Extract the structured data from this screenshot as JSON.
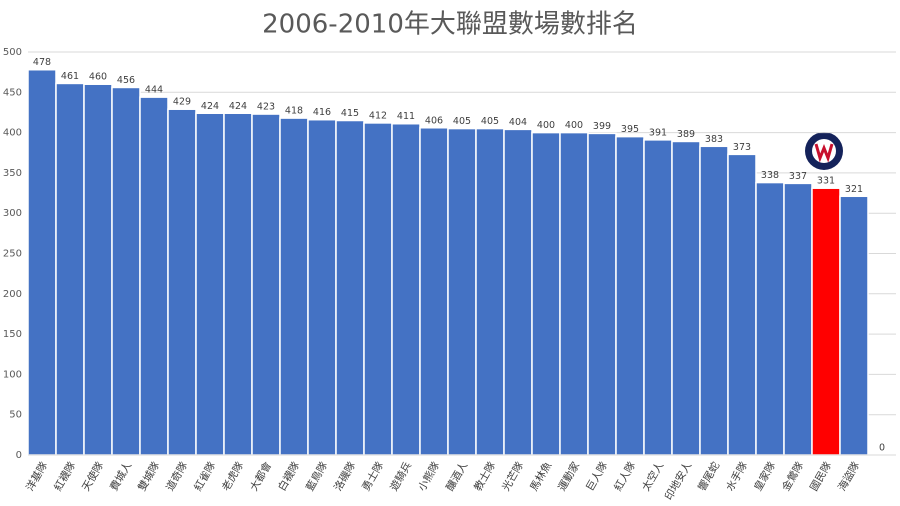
{
  "chart_data": {
    "type": "bar",
    "title": "2006-2010年大聯盟數場數排名",
    "categories": [
      "洋基隊",
      "紅襪隊",
      "天使隊",
      "費城人",
      "雙城隊",
      "道奇隊",
      "紅雀隊",
      "老虎隊",
      "大都會",
      "白襪隊",
      "藍鳥隊",
      "洛磯隊",
      "勇士隊",
      "遊騎兵",
      "小熊隊",
      "釀酒人",
      "教士隊",
      "光芒隊",
      "馬林魚",
      "運動家",
      "巨人隊",
      "紅人隊",
      "太空人",
      "印地安人",
      "響尾蛇",
      "水手隊",
      "皇家隊",
      "金鶯隊",
      "國民隊",
      "海盜隊",
      null
    ],
    "values": [
      478,
      461,
      460,
      456,
      444,
      429,
      424,
      424,
      423,
      418,
      416,
      415,
      412,
      411,
      406,
      405,
      405,
      404,
      400,
      400,
      399,
      395,
      391,
      389,
      383,
      373,
      338,
      337,
      331,
      321,
      0
    ],
    "colors": [
      "#4472c4",
      "#4472c4",
      "#4472c4",
      "#4472c4",
      "#4472c4",
      "#4472c4",
      "#4472c4",
      "#4472c4",
      "#4472c4",
      "#4472c4",
      "#4472c4",
      "#4472c4",
      "#4472c4",
      "#4472c4",
      "#4472c4",
      "#4472c4",
      "#4472c4",
      "#4472c4",
      "#4472c4",
      "#4472c4",
      "#4472c4",
      "#4472c4",
      "#4472c4",
      "#4472c4",
      "#4472c4",
      "#4472c4",
      "#4472c4",
      "#4472c4",
      "#ff0000",
      "#4472c4",
      "#4472c4"
    ],
    "ylim": [
      0,
      500
    ],
    "yticks": [
      0,
      50,
      100,
      150,
      200,
      250,
      300,
      350,
      400,
      450,
      500
    ],
    "grid": true
  }
}
